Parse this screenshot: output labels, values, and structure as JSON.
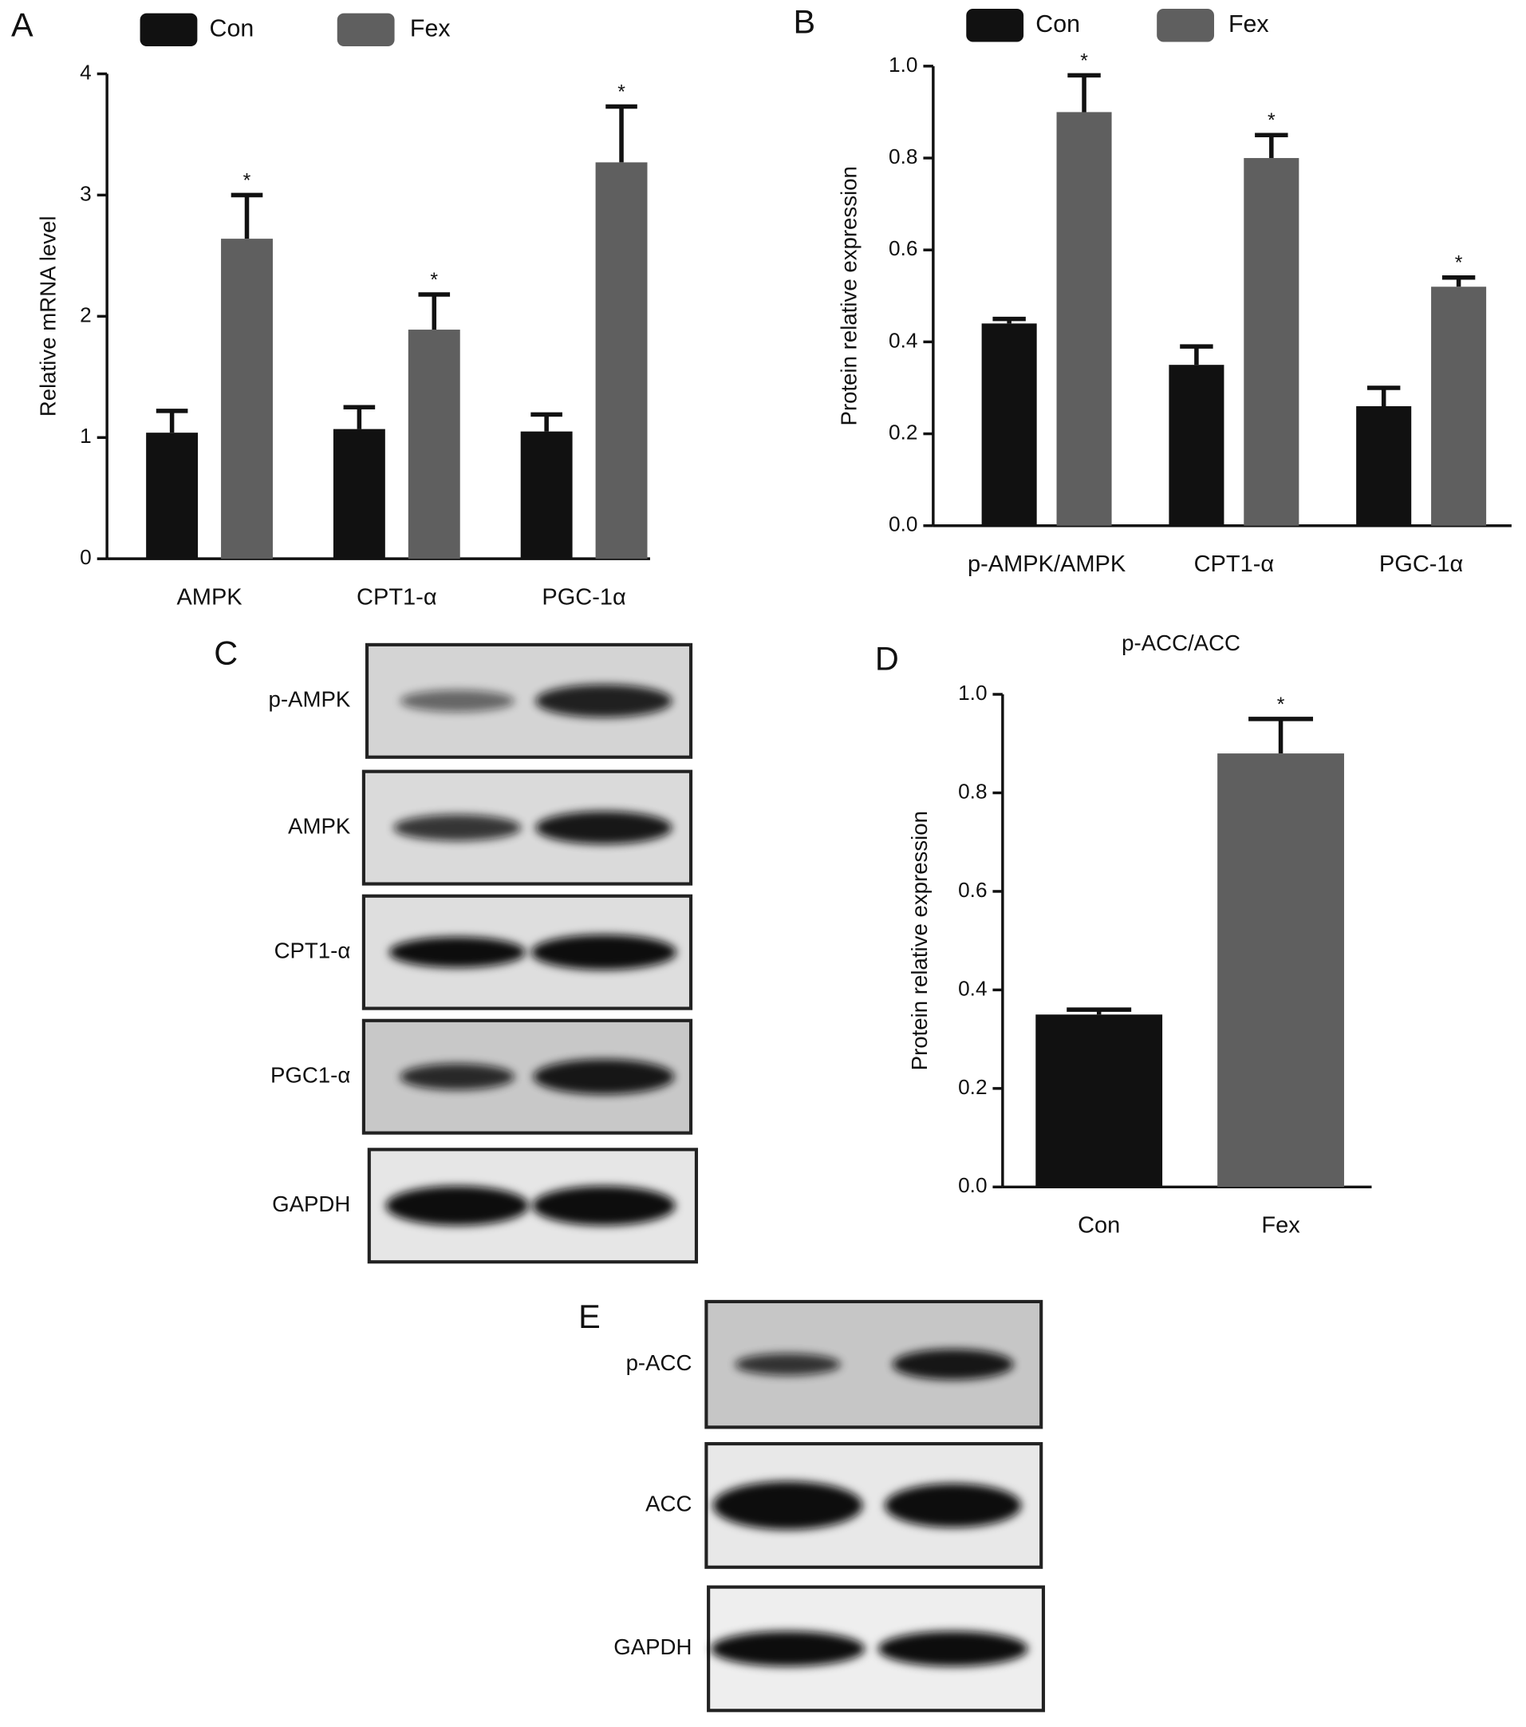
{
  "chart_data": [
    {
      "type": "bar",
      "panel": "A",
      "ylabel": "Relative mRNA level",
      "categories": [
        "AMPK",
        "CPT1-α",
        "PGC-1α"
      ],
      "series": [
        {
          "name": "Con",
          "color": "#111111",
          "values": [
            1.04,
            1.07,
            1.05
          ],
          "errors": [
            0.18,
            0.18,
            0.14
          ]
        },
        {
          "name": "Fex",
          "color": "#5f5f5f",
          "values": [
            2.64,
            1.89,
            3.27
          ],
          "errors": [
            0.36,
            0.29,
            0.46
          ],
          "annotations": [
            "*",
            "*",
            "*"
          ]
        }
      ],
      "ylim": [
        0,
        4
      ],
      "yticks": [
        0,
        1,
        2,
        3,
        4
      ],
      "legend": "top"
    },
    {
      "type": "bar",
      "panel": "B",
      "ylabel": "Protein relative expression",
      "categories": [
        "p-AMPK/AMPK",
        "CPT1-α",
        "PGC-1α"
      ],
      "series": [
        {
          "name": "Con",
          "color": "#111111",
          "values": [
            0.44,
            0.35,
            0.26
          ],
          "errors": [
            0.01,
            0.04,
            0.04
          ]
        },
        {
          "name": "Fex",
          "color": "#5f5f5f",
          "values": [
            0.9,
            0.8,
            0.52
          ],
          "errors": [
            0.08,
            0.05,
            0.02
          ],
          "annotations": [
            "*",
            "*",
            "*"
          ]
        }
      ],
      "ylim": [
        0,
        1
      ],
      "yticks": [
        {
          "value": 0,
          "label": "0.0"
        },
        0.2,
        0.4,
        0.6,
        0.8,
        {
          "value": 1,
          "label": "1.0"
        }
      ],
      "legend": "top"
    },
    {
      "type": "bar",
      "panel": "D",
      "title": "p-ACC/ACC",
      "ylabel": "Protein relative expression",
      "categories": [
        "Con",
        "Fex"
      ],
      "values": [
        0.35,
        0.88
      ],
      "errors": [
        0.01,
        0.07
      ],
      "colors": [
        "#111111",
        "#5f5f5f"
      ],
      "annotations": [
        null,
        "*"
      ],
      "ylim": [
        0,
        1
      ],
      "yticks": [
        {
          "value": 0,
          "label": "0.0"
        },
        0.2,
        0.4,
        0.6,
        0.8,
        {
          "value": 1,
          "label": "1.0"
        }
      ]
    }
  ],
  "blots": [
    {
      "panel": "C",
      "rows": [
        "p-AMPK",
        "AMPK",
        "CPT1-α",
        "PGC1-α",
        "GAPDH"
      ]
    },
    {
      "panel": "E",
      "rows": [
        "p-ACC",
        "ACC",
        "GAPDH"
      ]
    }
  ]
}
